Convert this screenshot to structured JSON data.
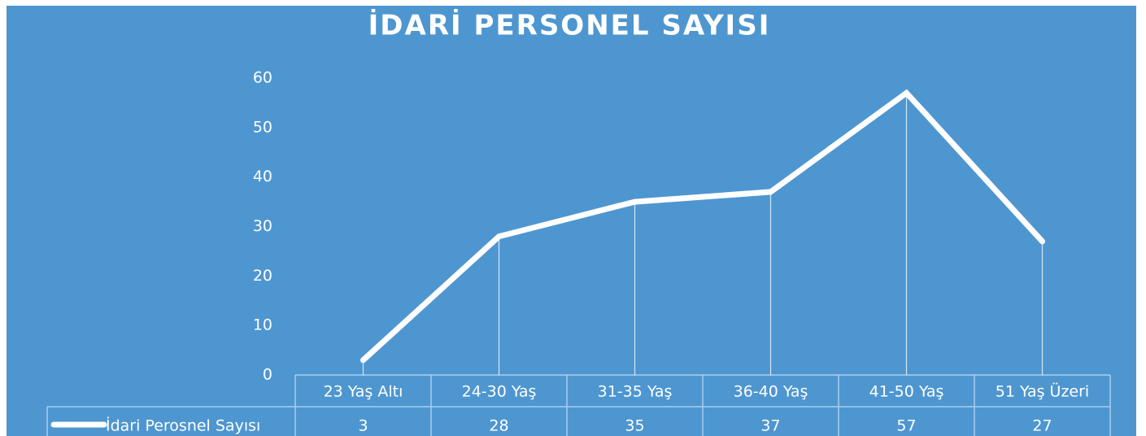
{
  "chart_data": {
    "type": "line",
    "title": "İDARİ PERSONEL SAYISI",
    "categories": [
      "23 Yaş Altı",
      "24-30 Yaş",
      "31-35 Yaş",
      "36-40 Yaş",
      "41-50 Yaş",
      "51 Yaş Üzeri"
    ],
    "series": [
      {
        "name": "İdari Perosnel Sayısı",
        "color": "#ffffff",
        "values": [
          3,
          28,
          35,
          37,
          57,
          27
        ]
      }
    ],
    "ylim": [
      0,
      60
    ],
    "yticks": [
      0,
      10,
      20,
      30,
      40,
      50,
      60
    ],
    "grid": false,
    "drop_lines": true,
    "data_table": true
  }
}
